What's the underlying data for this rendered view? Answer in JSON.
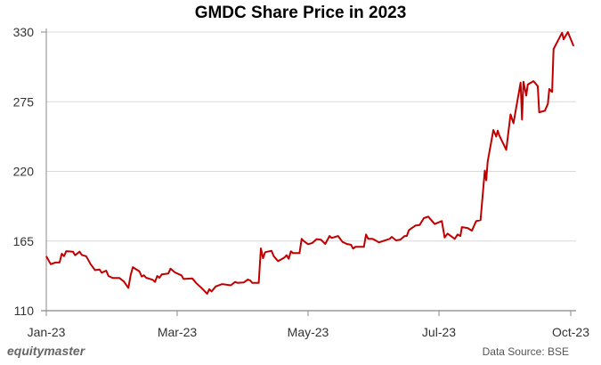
{
  "chart_data": {
    "type": "line",
    "title": "GMDC Share Price in 2023",
    "xlabel": "",
    "ylabel": "",
    "ylim": [
      110,
      330
    ],
    "yticks": [
      110,
      165,
      220,
      275,
      330
    ],
    "xticks": [
      {
        "label": "Jan-23",
        "date": "2023-01-01"
      },
      {
        "label": "Mar-23",
        "date": "2023-03-01"
      },
      {
        "label": "May-23",
        "date": "2023-05-01"
      },
      {
        "label": "Jul-23",
        "date": "2023-07-01"
      },
      {
        "label": "Oct-23",
        "date": "2023-10-01"
      }
    ],
    "grid": "horizontal",
    "line_color": "#c00000",
    "series": [
      {
        "points": [
          [
            "2023-01-01",
            153
          ],
          [
            "2023-01-03",
            146.7
          ],
          [
            "2023-01-05",
            148
          ],
          [
            "2023-01-07",
            148
          ],
          [
            "2023-01-08",
            155
          ],
          [
            "2023-01-09",
            153
          ],
          [
            "2023-01-10",
            157
          ],
          [
            "2023-01-13",
            156.6
          ],
          [
            "2023-01-14",
            153.8
          ],
          [
            "2023-01-16",
            156.6
          ],
          [
            "2023-01-17",
            154
          ],
          [
            "2023-01-19",
            153
          ],
          [
            "2023-01-21",
            146.7
          ],
          [
            "2023-01-23",
            142
          ],
          [
            "2023-01-25",
            142.5
          ],
          [
            "2023-01-26",
            140
          ],
          [
            "2023-01-28",
            141.6
          ],
          [
            "2023-01-29",
            137.4
          ],
          [
            "2023-01-31",
            135.8
          ],
          [
            "2023-02-03",
            135.8
          ],
          [
            "2023-02-05",
            133
          ],
          [
            "2023-02-07",
            128
          ],
          [
            "2023-02-08",
            138
          ],
          [
            "2023-02-09",
            144.4
          ],
          [
            "2023-02-12",
            141
          ],
          [
            "2023-02-13",
            137
          ],
          [
            "2023-02-14",
            138
          ],
          [
            "2023-02-15",
            136
          ],
          [
            "2023-02-18",
            134.4
          ],
          [
            "2023-02-19",
            132.7
          ],
          [
            "2023-02-20",
            137.4
          ],
          [
            "2023-02-21",
            136
          ],
          [
            "2023-02-22",
            138.6
          ],
          [
            "2023-02-25",
            139.3
          ],
          [
            "2023-02-26",
            143.2
          ],
          [
            "2023-02-28",
            140.2
          ],
          [
            "2023-03-03",
            137.9
          ],
          [
            "2023-03-04",
            135
          ],
          [
            "2023-03-08",
            135.5
          ],
          [
            "2023-03-10",
            131.6
          ],
          [
            "2023-03-12",
            128.5
          ],
          [
            "2023-03-15",
            123.4
          ],
          [
            "2023-03-16",
            127
          ],
          [
            "2023-03-17",
            125.2
          ],
          [
            "2023-03-19",
            129.2
          ],
          [
            "2023-03-22",
            131
          ],
          [
            "2023-03-26",
            130
          ],
          [
            "2023-03-28",
            132.7
          ],
          [
            "2023-03-29",
            132
          ],
          [
            "2023-04-01",
            132.3
          ],
          [
            "2023-04-03",
            134.6
          ],
          [
            "2023-04-04",
            133.9
          ],
          [
            "2023-04-05",
            132
          ],
          [
            "2023-04-08",
            132
          ],
          [
            "2023-04-09",
            159.2
          ],
          [
            "2023-04-10",
            151.5
          ],
          [
            "2023-04-11",
            156.2
          ],
          [
            "2023-04-14",
            157.3
          ],
          [
            "2023-04-15",
            153.1
          ],
          [
            "2023-04-17",
            149.1
          ],
          [
            "2023-04-20",
            152
          ],
          [
            "2023-04-21",
            153.8
          ],
          [
            "2023-04-22",
            151
          ],
          [
            "2023-04-23",
            156.9
          ],
          [
            "2023-04-24",
            155.5
          ],
          [
            "2023-04-27",
            155.5
          ],
          [
            "2023-04-28",
            166.7
          ],
          [
            "2023-04-29",
            165
          ],
          [
            "2023-05-01",
            162.5
          ],
          [
            "2023-05-03",
            163.5
          ],
          [
            "2023-05-05",
            166.5
          ],
          [
            "2023-05-07",
            166
          ],
          [
            "2023-05-09",
            162.7
          ],
          [
            "2023-05-11",
            169
          ],
          [
            "2023-05-12",
            167.4
          ],
          [
            "2023-05-15",
            169
          ],
          [
            "2023-05-17",
            164.3
          ],
          [
            "2023-05-19",
            162.7
          ],
          [
            "2023-05-21",
            162
          ],
          [
            "2023-05-22",
            159
          ],
          [
            "2023-05-23",
            160.4
          ],
          [
            "2023-05-27",
            160.4
          ],
          [
            "2023-05-28",
            170.2
          ],
          [
            "2023-05-29",
            166.7
          ],
          [
            "2023-05-31",
            166.7
          ],
          [
            "2023-06-02",
            165
          ],
          [
            "2023-06-03",
            163.9
          ],
          [
            "2023-06-08",
            166.7
          ],
          [
            "2023-06-09",
            168.3
          ],
          [
            "2023-06-11",
            165.5
          ],
          [
            "2023-06-13",
            166
          ],
          [
            "2023-06-15",
            169
          ],
          [
            "2023-06-16",
            169
          ],
          [
            "2023-06-17",
            173.7
          ],
          [
            "2023-06-20",
            177.2
          ],
          [
            "2023-06-22",
            177.7
          ],
          [
            "2023-06-24",
            183.1
          ],
          [
            "2023-06-26",
            184.3
          ],
          [
            "2023-06-29",
            178.4
          ],
          [
            "2023-07-03",
            180.8
          ],
          [
            "2023-07-05",
            167.8
          ],
          [
            "2023-07-07",
            170.9
          ],
          [
            "2023-07-12",
            166.7
          ],
          [
            "2023-07-14",
            170.2
          ],
          [
            "2023-07-16",
            169
          ],
          [
            "2023-07-17",
            176
          ],
          [
            "2023-07-21",
            175.3
          ],
          [
            "2023-07-24",
            173.2
          ],
          [
            "2023-07-27",
            180.8
          ],
          [
            "2023-07-30",
            181.5
          ],
          [
            "2023-08-02",
            220.6
          ],
          [
            "2023-08-03",
            212.9
          ],
          [
            "2023-08-04",
            227.6
          ],
          [
            "2023-08-08",
            252.7
          ],
          [
            "2023-08-10",
            247.5
          ],
          [
            "2023-08-11",
            252.2
          ],
          [
            "2023-08-12",
            248.6
          ],
          [
            "2023-08-17",
            237
          ],
          [
            "2023-08-20",
            265
          ],
          [
            "2023-08-22",
            258
          ],
          [
            "2023-08-27",
            290.1
          ],
          [
            "2023-08-28",
            261
          ],
          [
            "2023-08-29",
            290.8
          ],
          [
            "2023-08-31",
            279.8
          ],
          [
            "2023-09-01",
            288.5
          ],
          [
            "2023-09-05",
            291.3
          ],
          [
            "2023-09-08",
            287.3
          ],
          [
            "2023-09-09",
            266.7
          ],
          [
            "2023-09-13",
            267.9
          ],
          [
            "2023-09-15",
            273.3
          ],
          [
            "2023-09-16",
            285
          ],
          [
            "2023-09-18",
            282.7
          ],
          [
            "2023-09-19",
            316.6
          ],
          [
            "2023-09-25",
            329.5
          ],
          [
            "2023-09-26",
            324.3
          ],
          [
            "2023-09-29",
            330
          ],
          [
            "2023-10-03",
            319
          ]
        ]
      }
    ]
  },
  "footer": {
    "logo": "equitymaster",
    "source": "Data Source: BSE"
  }
}
